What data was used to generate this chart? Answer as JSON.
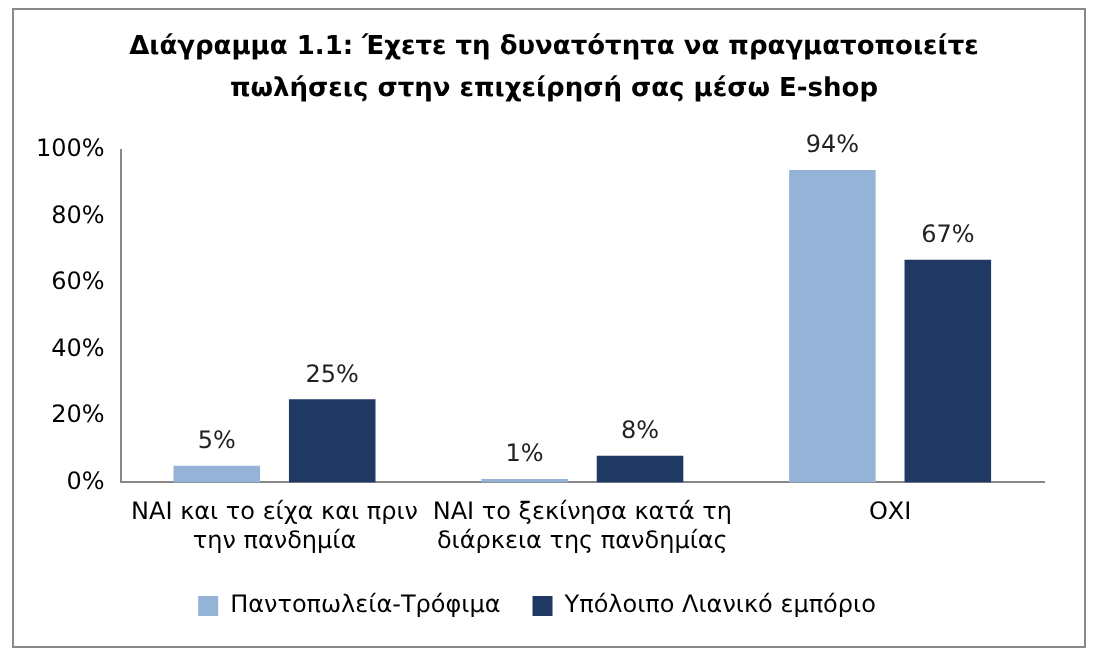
{
  "chart_data": {
    "type": "bar",
    "title": "Διάγραμμα 1.1: Έχετε τη δυνατότητα να πραγματοποιείτε πωλήσεις στην επιχείρησή σας μέσω E-shop",
    "categories": [
      "ΝΑΙ και το είχα και πριν την πανδημία",
      "ΝΑΙ το ξεκίνησα κατά τη διάρκεια της πανδημίας",
      "ΟΧΙ"
    ],
    "series": [
      {
        "name": "Παντοπωλεία-Τρόφιμα",
        "color": "#95b3d7",
        "values": [
          5,
          1,
          94
        ],
        "value_labels": [
          "5%",
          "1%",
          "94%"
        ]
      },
      {
        "name": "Υπόλοιπο Λιανικό εμπόριο",
        "color": "#1f3864",
        "values": [
          25,
          8,
          67
        ],
        "value_labels": [
          "25%",
          "8%",
          "67%"
        ]
      }
    ],
    "ylim": [
      0,
      100
    ],
    "yticks": [
      {
        "value": 0,
        "label": "0%"
      },
      {
        "value": 20,
        "label": "20%"
      },
      {
        "value": 40,
        "label": "40%"
      },
      {
        "value": 60,
        "label": "60%"
      },
      {
        "value": 80,
        "label": "80%"
      },
      {
        "value": 100,
        "label": "100%"
      }
    ],
    "grid": false,
    "legend": "bottom"
  }
}
